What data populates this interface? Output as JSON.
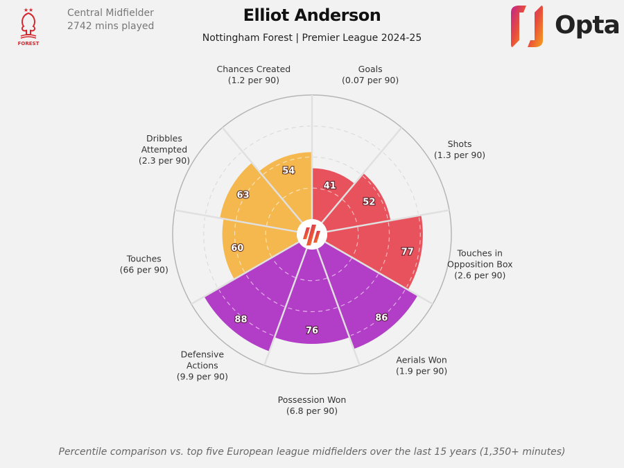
{
  "header": {
    "position": "Central Midfielder",
    "minutes": "2742 mins played",
    "title": "Elliot Anderson",
    "subtitle": "Nottingham Forest | Premier League 2024-25",
    "club_logo_text": "FOREST",
    "brand": "Opta"
  },
  "footnote": "Percentile comparison vs. top five European league midfielders over the last 15 years (1,350+ minutes)",
  "colors": {
    "attacking": "#e8525c",
    "possession": "#f5b84e",
    "defending": "#b23dc6",
    "background": "#f2f2f2"
  },
  "chart_data": {
    "type": "polar-bar",
    "scale": [
      0,
      100
    ],
    "grid_rings": [
      25,
      50,
      75
    ],
    "categories": [
      {
        "name": "Goals",
        "rate": "(0.07 per 90)",
        "value": 41,
        "group": "attacking"
      },
      {
        "name": "Shots",
        "rate": "(1.3 per 90)",
        "value": 52,
        "group": "attacking"
      },
      {
        "name": "Touches in\nOpposition Box",
        "rate": "(2.6 per 90)",
        "value": 77,
        "group": "attacking"
      },
      {
        "name": "Aerials Won",
        "rate": "(1.9 per 90)",
        "value": 86,
        "group": "defending"
      },
      {
        "name": "Possession Won",
        "rate": "(6.8 per 90)",
        "value": 76,
        "group": "defending"
      },
      {
        "name": "Defensive\nActions",
        "rate": "(9.9 per 90)",
        "value": 88,
        "group": "defending"
      },
      {
        "name": "Touches",
        "rate": "(66 per 90)",
        "value": 60,
        "group": "possession"
      },
      {
        "name": "Dribbles\nAttempted",
        "rate": "(2.3 per 90)",
        "value": 63,
        "group": "possession"
      },
      {
        "name": "Chances Created",
        "rate": "(1.2 per 90)",
        "value": 54,
        "group": "possession"
      }
    ]
  }
}
